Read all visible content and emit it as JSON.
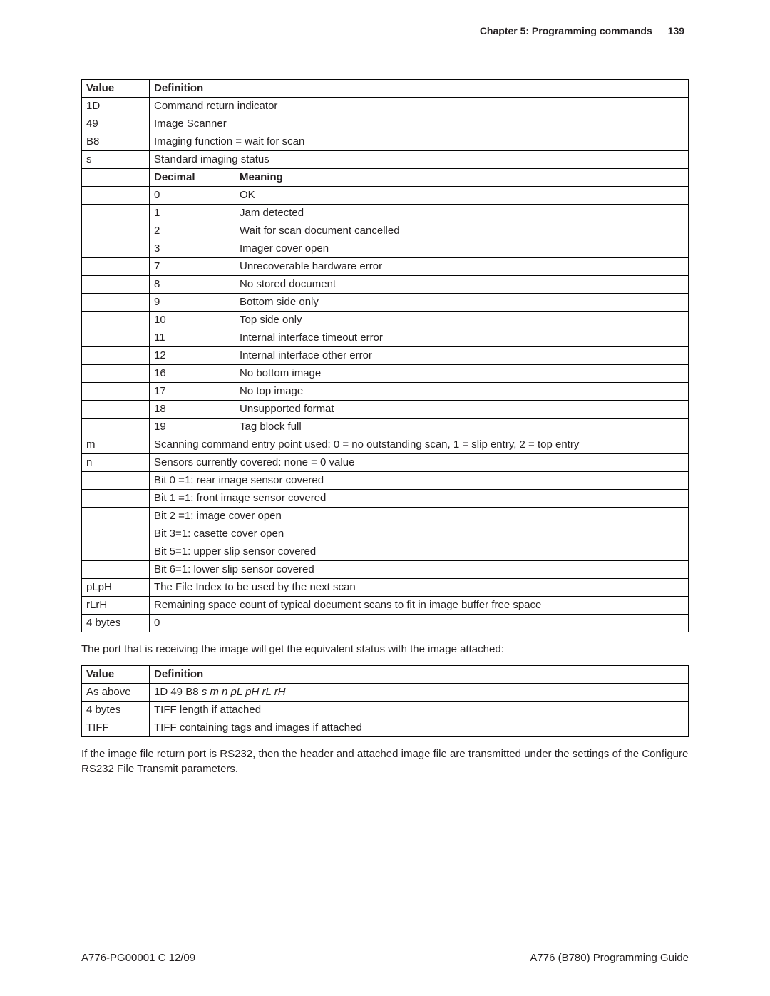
{
  "header": {
    "chapter": "Chapter 5: Programming commands",
    "page_number": "139"
  },
  "table1": {
    "headers": {
      "value": "Value",
      "definition": "Definition",
      "decimal": "Decimal",
      "meaning": "Meaning"
    },
    "top_rows": [
      {
        "value": "1D",
        "definition": "Command return indicator"
      },
      {
        "value": "49",
        "definition": "Image Scanner"
      },
      {
        "value": "B8",
        "definition": "Imaging function = wait for scan"
      },
      {
        "value": "s",
        "definition": "Standard imaging status"
      }
    ],
    "decimal_rows": [
      {
        "decimal": "0",
        "meaning": "OK"
      },
      {
        "decimal": "1",
        "meaning": "Jam detected"
      },
      {
        "decimal": "2",
        "meaning": "Wait for scan document cancelled"
      },
      {
        "decimal": "3",
        "meaning": "Imager cover open"
      },
      {
        "decimal": "7",
        "meaning": "Unrecoverable hardware error"
      },
      {
        "decimal": "8",
        "meaning": "No stored document"
      },
      {
        "decimal": "9",
        "meaning": "Bottom side only"
      },
      {
        "decimal": "10",
        "meaning": "Top side only"
      },
      {
        "decimal": "11",
        "meaning": "Internal interface timeout error"
      },
      {
        "decimal": "12",
        "meaning": "Internal interface other error"
      },
      {
        "decimal": "16",
        "meaning": "No bottom image"
      },
      {
        "decimal": "17",
        "meaning": "No top image"
      },
      {
        "decimal": "18",
        "meaning": "Unsupported format"
      },
      {
        "decimal": "19",
        "meaning": "Tag block full"
      }
    ],
    "sensor_rows": [
      {
        "value": "m",
        "definition": "Scanning command entry point used: 0 = no outstanding scan, 1 = slip entry, 2 = top entry"
      },
      {
        "value": "n",
        "definition": "Sensors currently covered: none = 0 value"
      },
      {
        "value": "",
        "definition": "Bit 0 =1: rear image sensor covered"
      },
      {
        "value": "",
        "definition": "Bit 1 =1: front image sensor covered"
      },
      {
        "value": "",
        "definition": "Bit 2 =1: image cover open"
      },
      {
        "value": "",
        "definition": "Bit 3=1: casette cover open"
      },
      {
        "value": "",
        "definition": "Bit 5=1: upper slip sensor covered"
      },
      {
        "value": "",
        "definition": "Bit 6=1: lower slip sensor covered"
      },
      {
        "value": "pLpH",
        "definition": "The File Index to be used by the next scan"
      },
      {
        "value": "rLrH",
        "definition": "Remaining space count of typical document scans to fit in image buffer free space"
      },
      {
        "value": "4 bytes",
        "definition": "0"
      }
    ]
  },
  "para1": "The port that is receiving the image will get the equivalent status with the image attached:",
  "table2": {
    "headers": {
      "value": "Value",
      "definition": "Definition"
    },
    "rows": [
      {
        "value": "As above",
        "definition_prefix": "1D 49 B8 ",
        "definition_italic": "s m n pL pH rL rH"
      },
      {
        "value": "4 bytes",
        "definition": "TIFF length if attached"
      },
      {
        "value": "TIFF",
        "definition": "TIFF containing tags and images if attached"
      }
    ]
  },
  "para2": "If the image file return port is RS232, then the header and attached image file are transmitted under the settings of the Configure RS232 File Transmit parameters.",
  "footer": {
    "left": "A776-PG00001 C 12/09",
    "right": "A776 (B780) Programming Guide"
  }
}
